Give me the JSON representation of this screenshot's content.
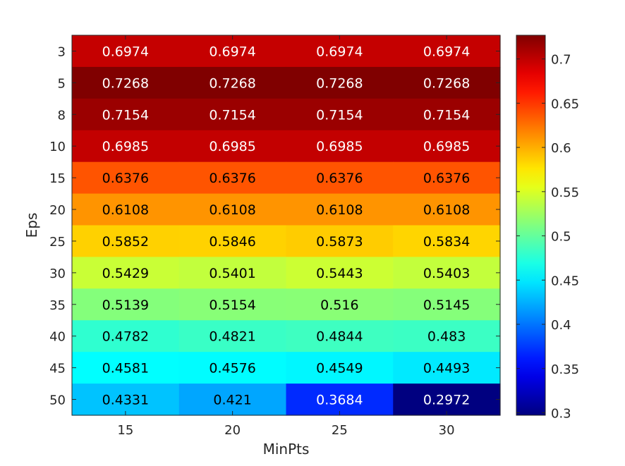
{
  "chart_data": {
    "type": "heatmap",
    "xlabel": "MinPts",
    "ylabel": "Eps",
    "x": [
      "15",
      "20",
      "25",
      "30"
    ],
    "y": [
      "3",
      "5",
      "8",
      "10",
      "15",
      "20",
      "25",
      "30",
      "35",
      "40",
      "45",
      "50"
    ],
    "values": [
      [
        0.6974,
        0.6974,
        0.6974,
        0.6974
      ],
      [
        0.7268,
        0.7268,
        0.7268,
        0.7268
      ],
      [
        0.7154,
        0.7154,
        0.7154,
        0.7154
      ],
      [
        0.6985,
        0.6985,
        0.6985,
        0.6985
      ],
      [
        0.6376,
        0.6376,
        0.6376,
        0.6376
      ],
      [
        0.6108,
        0.6108,
        0.6108,
        0.6108
      ],
      [
        0.5852,
        0.5846,
        0.5873,
        0.5834
      ],
      [
        0.5429,
        0.5401,
        0.5443,
        0.5403
      ],
      [
        0.5139,
        0.5154,
        0.516,
        0.5145
      ],
      [
        0.4782,
        0.4821,
        0.4844,
        0.483
      ],
      [
        0.4581,
        0.4576,
        0.4549,
        0.4493
      ],
      [
        0.4331,
        0.421,
        0.3684,
        0.2972
      ]
    ],
    "colormap": "jet",
    "clim": [
      0.2972,
      0.7268
    ],
    "colorbar": {
      "ticks": [
        0.3,
        0.35,
        0.4,
        0.45,
        0.5,
        0.55,
        0.6,
        0.65,
        0.7
      ],
      "tick_labels": [
        "0.3",
        "0.35",
        "0.4",
        "0.45",
        "0.5",
        "0.55",
        "0.6",
        "0.65",
        "0.7"
      ],
      "placement": "right"
    },
    "grid": false
  }
}
